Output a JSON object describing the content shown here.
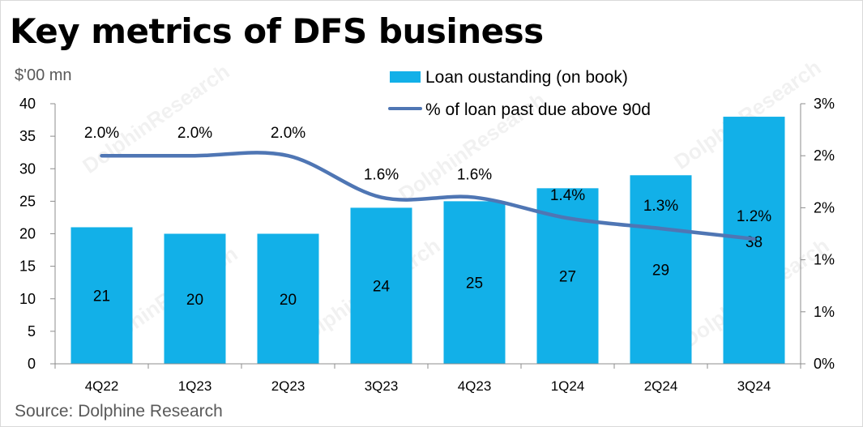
{
  "title": "Key metrics of DFS business",
  "unit_label": "$'00 mn",
  "source": "Source:  Dolphine Research",
  "watermark": "DolphinResearch",
  "chart_data": {
    "type": "bar",
    "categories": [
      "4Q22",
      "1Q23",
      "2Q23",
      "3Q23",
      "4Q23",
      "1Q24",
      "2Q24",
      "3Q24"
    ],
    "series": [
      {
        "name": "Loan oustanding (on book)",
        "type": "bar",
        "axis": "left",
        "color": "#12b0e8",
        "values": [
          21,
          20,
          20,
          24,
          25,
          27,
          29,
          38
        ],
        "labels": [
          "21",
          "20",
          "20",
          "24",
          "25",
          "27",
          "29",
          "38"
        ]
      },
      {
        "name": "% of loan past due above 90d",
        "type": "line",
        "axis": "right",
        "color": "#4f76b4",
        "values": [
          2.0,
          2.0,
          2.0,
          1.6,
          1.6,
          1.4,
          1.3,
          1.2
        ],
        "labels": [
          "2.0%",
          "2.0%",
          "2.0%",
          "1.6%",
          "1.6%",
          "1.4%",
          "1.3%",
          "1.2%"
        ]
      }
    ],
    "y_left": {
      "lim": [
        0,
        40
      ],
      "ticks": [
        0,
        5,
        10,
        15,
        20,
        25,
        30,
        35,
        40
      ],
      "tick_labels": [
        "0",
        "5",
        "10",
        "15",
        "20",
        "25",
        "30",
        "35",
        "40"
      ]
    },
    "y_right": {
      "lim": [
        0,
        2.5
      ],
      "ticks": [
        0,
        0.5,
        1.0,
        1.5,
        2.0,
        2.5
      ],
      "tick_labels": [
        "0%",
        "1%",
        "1%",
        "2%",
        "2%",
        "3%"
      ]
    },
    "grid": false,
    "legend": "top-right"
  }
}
